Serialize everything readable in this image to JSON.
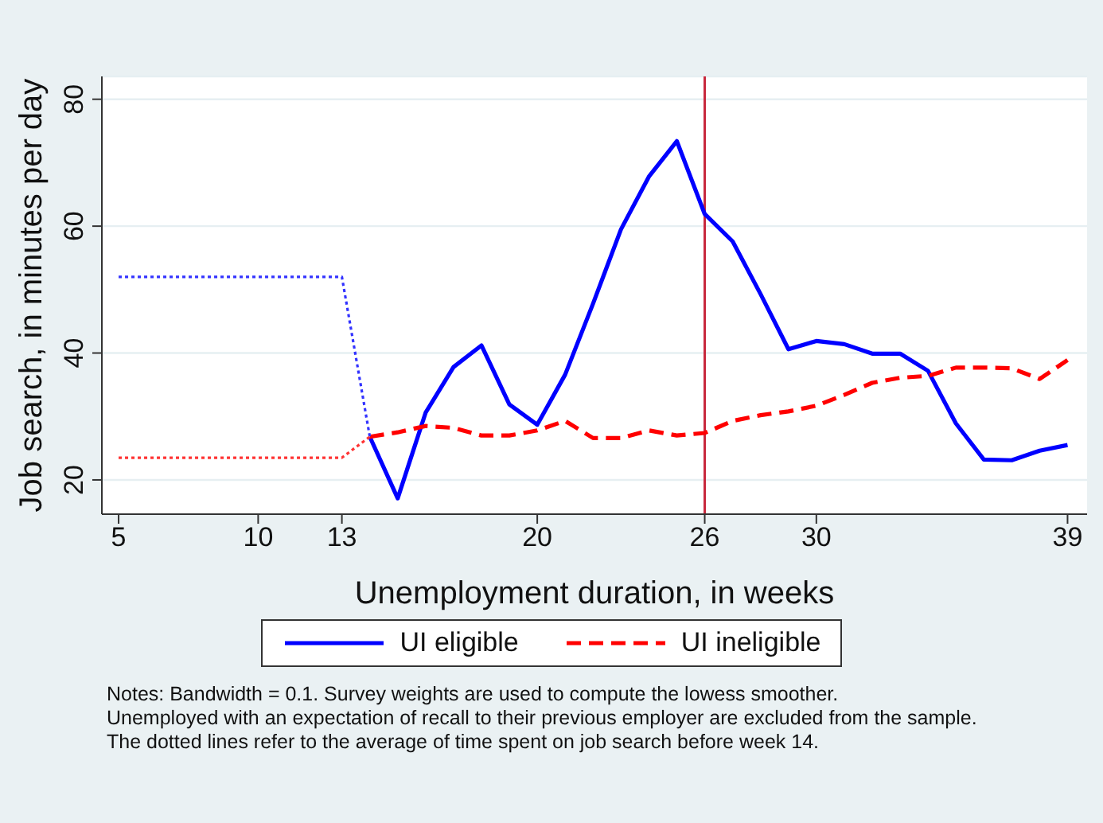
{
  "chart_data": {
    "type": "line",
    "xlabel": "Unemployment duration, in weeks",
    "ylabel": "Job search, in minutes per day",
    "xlim": [
      4.4,
      39.7
    ],
    "ylim": [
      14.6,
      83.6
    ],
    "xticks": [
      5,
      10,
      13,
      20,
      26,
      30,
      39
    ],
    "yticks": [
      20,
      40,
      60,
      80
    ],
    "grid": "y",
    "legend": "bottom",
    "marker": "none",
    "series": [
      {
        "name": "UI eligible",
        "color": "#0000ff",
        "line_style": "solid",
        "x": [
          14,
          15,
          16,
          17,
          18,
          19,
          20,
          21,
          22,
          23,
          24,
          25,
          26,
          27,
          28,
          29,
          30,
          31,
          32,
          33,
          34,
          35,
          36,
          37,
          38,
          39
        ],
        "values": [
          26.8,
          17.1,
          30.6,
          37.8,
          41.2,
          31.9,
          28.7,
          36.6,
          47.8,
          59.5,
          67.8,
          73.4,
          61.9,
          57.6,
          49.3,
          40.6,
          41.9,
          41.4,
          39.9,
          39.9,
          37.2,
          28.9,
          23.2,
          23.1,
          24.6,
          25.5
        ]
      },
      {
        "name": "UI ineligible",
        "color": "#ff0000",
        "line_style": "dashed",
        "x": [
          14,
          15,
          16,
          17,
          18,
          19,
          20,
          21,
          22,
          23,
          24,
          25,
          26,
          27,
          28,
          29,
          30,
          31,
          32,
          33,
          34,
          35,
          36,
          37,
          38,
          39
        ],
        "values": [
          26.8,
          27.5,
          28.5,
          28.2,
          27.0,
          27.0,
          27.8,
          29.3,
          26.6,
          26.6,
          27.8,
          27.0,
          27.4,
          29.3,
          30.2,
          30.8,
          31.7,
          33.4,
          35.3,
          36.1,
          36.4,
          37.7,
          37.7,
          37.6,
          35.9,
          38.9
        ]
      },
      {
        "color": "#3333ff",
        "line_style": "dotted",
        "x": [
          5,
          13,
          14
        ],
        "values": [
          52,
          52,
          26.8
        ]
      },
      {
        "color": "#ff3333",
        "line_style": "dotted",
        "x": [
          5,
          13,
          14
        ],
        "values": [
          23.5,
          23.5,
          26.8
        ]
      }
    ],
    "ref_lines": [
      {
        "axis": "x",
        "value": 26,
        "color": "#c8283c"
      }
    ],
    "annotations": [
      "Notes: Bandwidth = 0.1. Survey weights are used to compute the lowess smoother.",
      "Unemployed with an expectation of recall to their previous employer are excluded from the sample.",
      "The dotted lines refer to the average of time spent on job search before week 14."
    ]
  }
}
